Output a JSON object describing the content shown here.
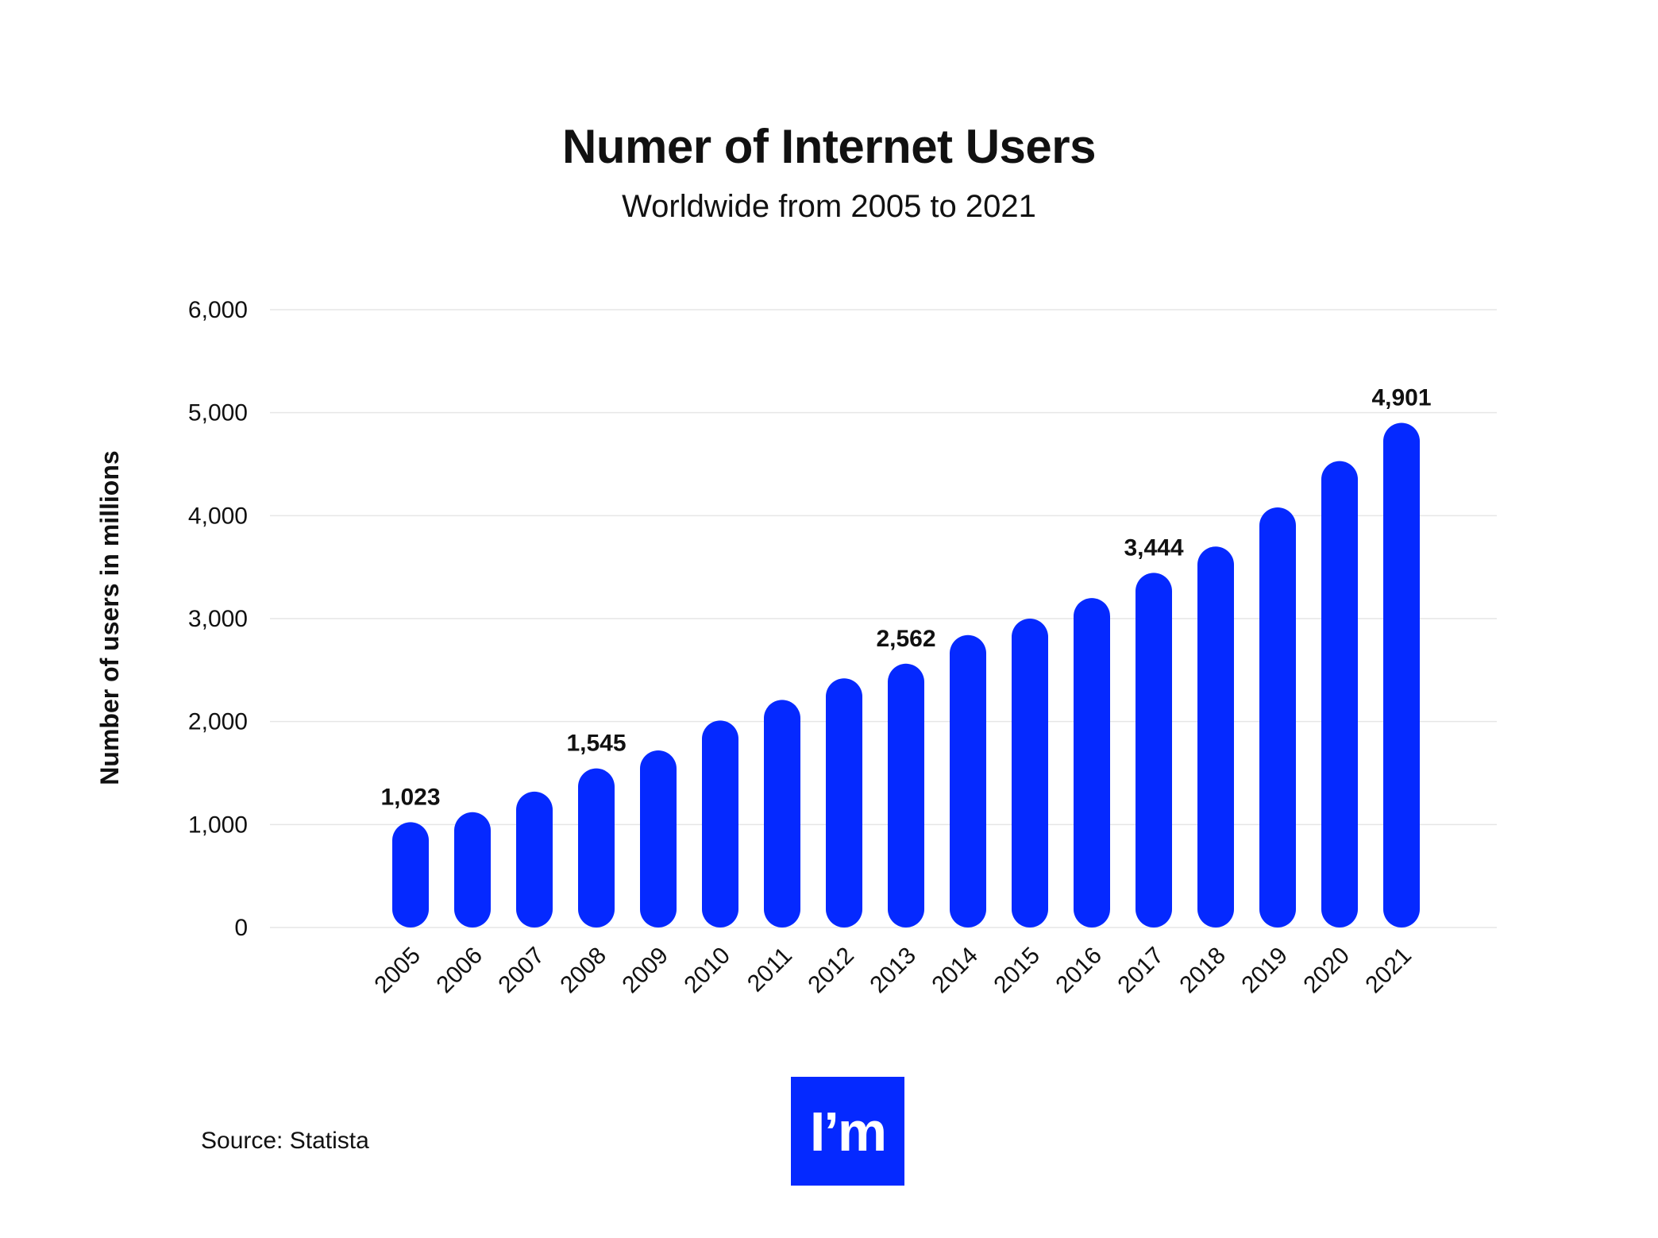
{
  "header": {
    "title": "Numer of Internet Users",
    "subtitle": "Worldwide from 2005 to 2021"
  },
  "footer": {
    "source": "Source: Statista",
    "logo_text": "I’m"
  },
  "colors": {
    "bar": "#0529ff",
    "grid": "#e6e6e6",
    "text": "#111111"
  },
  "chart_data": {
    "type": "bar",
    "title": "Numer of Internet Users",
    "subtitle": "Worldwide from 2005 to 2021",
    "xlabel": "",
    "ylabel": "Number of users in millions",
    "ylim": [
      0,
      6000
    ],
    "yticks": [
      0,
      1000,
      2000,
      3000,
      4000,
      5000,
      6000
    ],
    "ytick_labels": [
      "0",
      "1,000",
      "2,000",
      "3,000",
      "4,000",
      "5,000",
      "6,000"
    ],
    "grid": true,
    "categories": [
      "2005",
      "2006",
      "2007",
      "2008",
      "2009",
      "2010",
      "2011",
      "2012",
      "2013",
      "2014",
      "2015",
      "2016",
      "2017",
      "2018",
      "2019",
      "2020",
      "2021"
    ],
    "values": [
      1023,
      1120,
      1320,
      1545,
      1720,
      2010,
      2210,
      2420,
      2562,
      2840,
      3000,
      3200,
      3444,
      3700,
      4080,
      4530,
      4901
    ],
    "data_labels": [
      {
        "category": "2005",
        "text": "1,023"
      },
      {
        "category": "2008",
        "text": "1,545"
      },
      {
        "category": "2013",
        "text": "2,562"
      },
      {
        "category": "2017",
        "text": "3,444"
      },
      {
        "category": "2021",
        "text": "4,901"
      }
    ]
  }
}
